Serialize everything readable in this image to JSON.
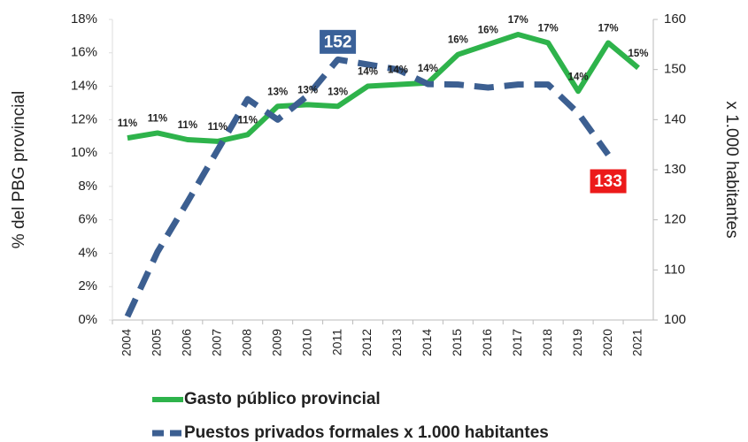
{
  "chart_data": {
    "type": "line",
    "categories": [
      "2004",
      "2005",
      "2006",
      "2007",
      "2008",
      "2009",
      "2010",
      "2011",
      "2012",
      "2013",
      "2014",
      "2015",
      "2016",
      "2017",
      "2018",
      "2019",
      "2020",
      "2021"
    ],
    "series": [
      {
        "name": "Gasto público provincial",
        "color": "#2eb34b",
        "style": "solid",
        "axis": "y",
        "values": [
          10.9,
          11.2,
          10.8,
          10.7,
          11.1,
          12.8,
          12.9,
          12.8,
          14.0,
          14.1,
          14.2,
          15.9,
          16.5,
          17.1,
          16.6,
          13.7,
          16.6,
          15.1
        ],
        "value_labels": [
          "11%",
          "11%",
          "11%",
          "11%",
          "11%",
          "13%",
          "13%",
          "13%",
          "14%",
          "14%",
          "14%",
          "16%",
          "16%",
          "17%",
          "17%",
          "14%",
          "17%",
          "15%"
        ]
      },
      {
        "name": "Puestos privados formales x 1.000 habitantes",
        "color": "#3c5f91",
        "style": "dashed",
        "axis": "y2",
        "values": [
          100.7,
          113.6,
          123.6,
          133.9,
          144.1,
          140.0,
          144.8,
          152,
          151.0,
          150.0,
          147.1,
          147.0,
          146.4,
          147.0,
          147.0,
          141.3,
          133,
          null
        ],
        "value_labels": [
          null,
          null,
          null,
          null,
          null,
          null,
          null,
          "152",
          null,
          null,
          null,
          null,
          null,
          null,
          null,
          null,
          "133",
          null
        ],
        "label_colors": [
          null,
          null,
          null,
          null,
          null,
          null,
          null,
          "#3a6199",
          null,
          null,
          null,
          null,
          null,
          null,
          null,
          null,
          "#ec1a1a",
          null
        ]
      }
    ],
    "ylabel": "% del PBG provincial",
    "y2label": "x 1.000 habitantes",
    "ylim": [
      0,
      18
    ],
    "yticks": [
      {
        "value": 0,
        "label": "0%"
      },
      {
        "value": 2,
        "label": "2%"
      },
      {
        "value": 4,
        "label": "4%"
      },
      {
        "value": 6,
        "label": "6%"
      },
      {
        "value": 8,
        "label": "8%"
      },
      {
        "value": 10,
        "label": "10%"
      },
      {
        "value": 12,
        "label": "12%"
      },
      {
        "value": 14,
        "label": "14%"
      },
      {
        "value": 16,
        "label": "16%"
      },
      {
        "value": 18,
        "label": "18%"
      }
    ],
    "y2lim": [
      100,
      160
    ],
    "y2ticks": [
      100,
      110,
      120,
      130,
      140,
      150,
      160
    ],
    "legend": "bottom"
  }
}
